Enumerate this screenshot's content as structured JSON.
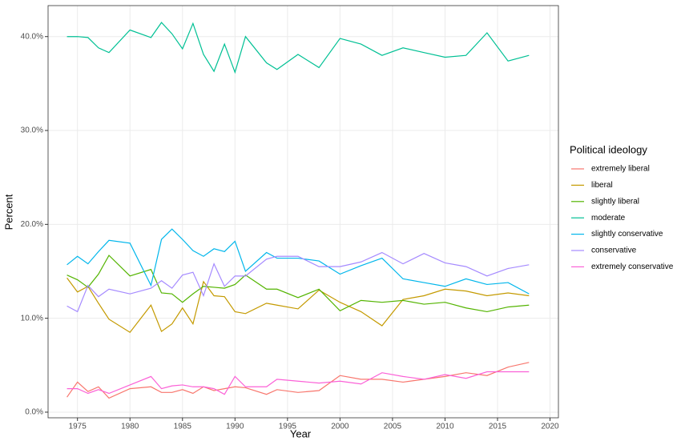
{
  "chart_data": {
    "type": "line",
    "x_label": "Year",
    "y_label": "Percent",
    "legend_title": "Political ideology",
    "legend_position": "right",
    "grid": true,
    "x": [
      1974,
      1975,
      1976,
      1977,
      1978,
      1980,
      1982,
      1983,
      1984,
      1985,
      1986,
      1987,
      1988,
      1989,
      1990,
      1991,
      1993,
      1994,
      1996,
      1998,
      2000,
      2002,
      2004,
      2006,
      2008,
      2010,
      2012,
      2014,
      2016,
      2018
    ],
    "xlim": [
      1972.2,
      2020.8
    ],
    "xticks": [
      1975,
      1980,
      1985,
      1990,
      1995,
      2000,
      2005,
      2010,
      2015,
      2020
    ],
    "ylim": [
      -0.6,
      43.3
    ],
    "yticks": [
      {
        "value": 0,
        "label": "0.0%"
      },
      {
        "value": 10,
        "label": "10.0%"
      },
      {
        "value": 20,
        "label": "20.0%"
      },
      {
        "value": 30,
        "label": "30.0%"
      },
      {
        "value": 40,
        "label": "40.0%"
      }
    ],
    "series": [
      {
        "name": "extremely liberal",
        "color": "#F8766D",
        "values": [
          1.6,
          3.2,
          2.2,
          2.7,
          1.5,
          2.5,
          2.7,
          2.1,
          2.1,
          2.4,
          2.0,
          2.7,
          2.3,
          2.5,
          2.7,
          2.6,
          1.9,
          2.4,
          2.1,
          2.3,
          3.9,
          3.5,
          3.5,
          3.2,
          3.5,
          3.8,
          4.2,
          3.9,
          4.8,
          5.3
        ]
      },
      {
        "name": "liberal",
        "color": "#C49A00",
        "values": [
          14.3,
          12.8,
          13.4,
          11.6,
          9.9,
          8.5,
          11.4,
          8.6,
          9.4,
          11.1,
          9.4,
          13.9,
          12.4,
          12.3,
          10.7,
          10.5,
          11.6,
          11.4,
          11.0,
          13.0,
          11.7,
          10.7,
          9.2,
          12.0,
          12.4,
          13.1,
          12.9,
          12.4,
          12.7,
          12.4
        ]
      },
      {
        "name": "slightly liberal",
        "color": "#53B400",
        "values": [
          14.6,
          14.1,
          13.3,
          14.7,
          16.7,
          14.5,
          15.2,
          12.7,
          12.6,
          11.7,
          12.6,
          13.4,
          13.3,
          13.2,
          13.6,
          14.6,
          13.1,
          13.1,
          12.2,
          13.1,
          10.8,
          11.9,
          11.7,
          11.9,
          11.5,
          11.7,
          11.1,
          10.7,
          11.2,
          11.4
        ]
      },
      {
        "name": "moderate",
        "color": "#00C094",
        "values": [
          40.0,
          40.0,
          39.9,
          38.8,
          38.3,
          40.7,
          39.9,
          41.5,
          40.3,
          38.7,
          41.4,
          38.1,
          36.3,
          39.2,
          36.2,
          40.0,
          37.2,
          36.5,
          38.1,
          36.7,
          39.8,
          39.2,
          38.0,
          38.8,
          38.3,
          37.8,
          38.0,
          40.4,
          37.4,
          38.0
        ]
      },
      {
        "name": "slightly conservative",
        "color": "#00B6EB",
        "values": [
          15.7,
          16.6,
          15.8,
          17.1,
          18.3,
          18.0,
          13.5,
          18.4,
          19.5,
          18.4,
          17.2,
          16.6,
          17.4,
          17.1,
          18.2,
          15.0,
          17.0,
          16.4,
          16.4,
          16.1,
          14.7,
          15.6,
          16.4,
          14.2,
          13.8,
          13.4,
          14.2,
          13.6,
          13.8,
          12.6
        ]
      },
      {
        "name": "conservative",
        "color": "#A58AFF",
        "values": [
          11.3,
          10.7,
          13.5,
          12.3,
          13.1,
          12.6,
          13.2,
          14.0,
          13.2,
          14.6,
          14.9,
          12.4,
          15.8,
          13.4,
          14.5,
          14.5,
          16.3,
          16.6,
          16.6,
          15.5,
          15.5,
          16.0,
          17.0,
          15.8,
          16.9,
          15.9,
          15.5,
          14.5,
          15.3,
          15.7
        ]
      },
      {
        "name": "extremely conservative",
        "color": "#FB61D7",
        "values": [
          2.5,
          2.5,
          2.0,
          2.4,
          2.0,
          2.9,
          3.8,
          2.5,
          2.8,
          2.9,
          2.7,
          2.7,
          2.5,
          1.9,
          3.8,
          2.7,
          2.7,
          3.5,
          3.3,
          3.1,
          3.3,
          3.0,
          4.2,
          3.8,
          3.5,
          4.0,
          3.6,
          4.3,
          4.3,
          4.3
        ]
      }
    ]
  }
}
